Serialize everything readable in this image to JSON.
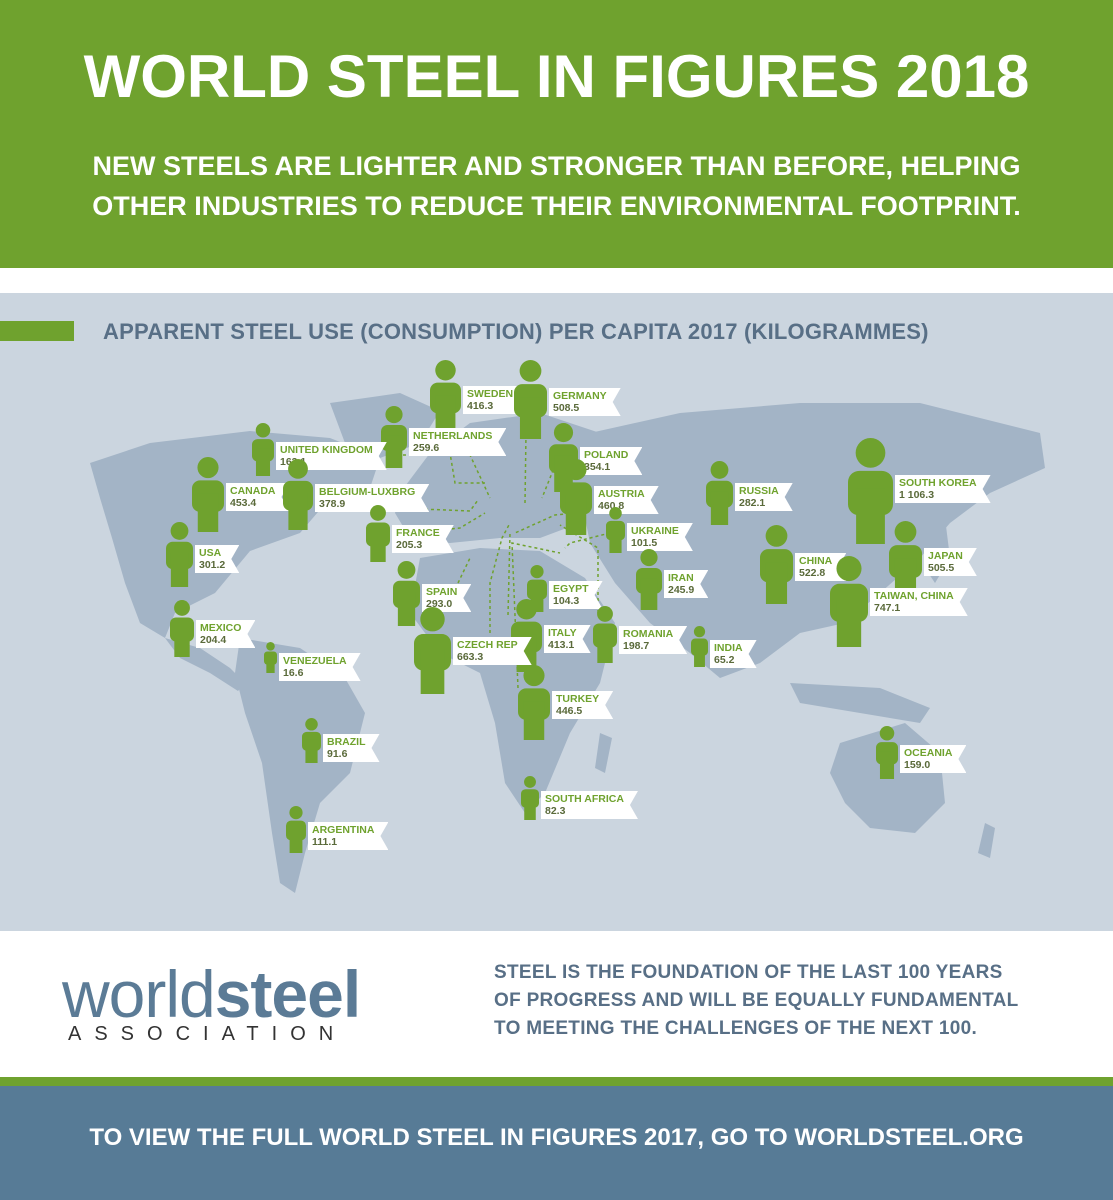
{
  "header": {
    "title": "WORLD STEEL IN FIGURES 2018",
    "subtitle_line1": "NEW STEELS ARE LIGHTER AND STRONGER THAN BEFORE, HELPING",
    "subtitle_line2": "OTHER INDUSTRIES TO REDUCE THEIR ENVIRONMENTAL FOOTPRINT."
  },
  "section_title": "APPARENT STEEL USE (CONSUMPTION) PER CAPITA 2017 (KILOGRAMMES)",
  "countries": [
    {
      "name": "SWEDEN",
      "value": "416.3"
    },
    {
      "name": "GERMANY",
      "value": "508.5"
    },
    {
      "name": "NETHERLANDS",
      "value": "259.6"
    },
    {
      "name": "UNITED KINGDOM",
      "value": "163.1"
    },
    {
      "name": "POLAND",
      "value": "354.1"
    },
    {
      "name": "CANADA",
      "value": "453.4"
    },
    {
      "name": "BELGIUM-LUXBRG",
      "value": "378.9"
    },
    {
      "name": "AUSTRIA",
      "value": "460.8"
    },
    {
      "name": "RUSSIA",
      "value": "282.1"
    },
    {
      "name": "SOUTH KOREA",
      "value": "1 106.3"
    },
    {
      "name": "FRANCE",
      "value": "205.3"
    },
    {
      "name": "UKRAINE",
      "value": "101.5"
    },
    {
      "name": "USA",
      "value": "301.2"
    },
    {
      "name": "CHINA",
      "value": "522.8"
    },
    {
      "name": "JAPAN",
      "value": "505.5"
    },
    {
      "name": "EGYPT",
      "value": "104.3"
    },
    {
      "name": "IRAN",
      "value": "245.9"
    },
    {
      "name": "SPAIN",
      "value": "293.0"
    },
    {
      "name": "TAIWAN, CHINA",
      "value": "747.1"
    },
    {
      "name": "MEXICO",
      "value": "204.4"
    },
    {
      "name": "ITALY",
      "value": "413.1"
    },
    {
      "name": "ROMANIA",
      "value": "198.7"
    },
    {
      "name": "CZECH REP",
      "value": "663.3"
    },
    {
      "name": "INDIA",
      "value": "65.2"
    },
    {
      "name": "VENEZUELA",
      "value": "16.6"
    },
    {
      "name": "TURKEY",
      "value": "446.5"
    },
    {
      "name": "BRAZIL",
      "value": "91.6"
    },
    {
      "name": "OCEANIA",
      "value": "159.0"
    },
    {
      "name": "SOUTH AFRICA",
      "value": "82.3"
    },
    {
      "name": "ARGENTINA",
      "value": "111.1"
    }
  ],
  "logo": {
    "word1": "world",
    "word2": "steel",
    "sub": "ASSOCIATION"
  },
  "tagline": {
    "line1": "STEEL IS THE FOUNDATION OF THE LAST 100 YEARS",
    "line2": "OF PROGRESS AND WILL BE EQUALLY FUNDAMENTAL",
    "line3": "TO MEETING THE CHALLENGES OF THE NEXT 100."
  },
  "footer": "TO VIEW THE FULL WORLD STEEL IN FIGURES 2017, GO TO WORLDSTEEL.ORG",
  "colors": {
    "green": "#6fa22e",
    "slate": "#577b96",
    "map_bg": "#cbd5df",
    "land": "#a3b4c6"
  }
}
